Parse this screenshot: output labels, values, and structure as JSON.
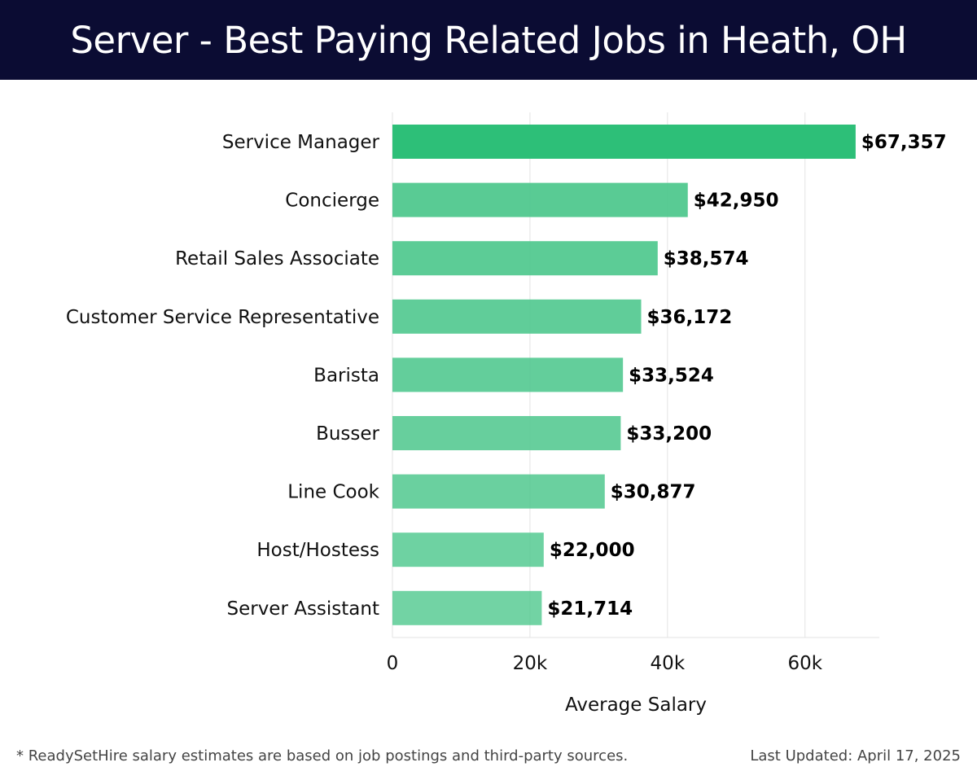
{
  "title": "Server - Best Paying Related Jobs in Heath, OH",
  "footnote": "* ReadySetHire salary estimates are based on job postings and third-party sources.",
  "last_updated": "Last Updated: April 17, 2025",
  "colors": {
    "header_bg": "#0b0c33",
    "bar_top": "#2dbf78",
    "bar": "#4cc78c",
    "grid": "#e3e3e3"
  },
  "chart_data": {
    "type": "bar",
    "orientation": "horizontal",
    "categories": [
      "Service Manager",
      "Concierge",
      "Retail Sales Associate",
      "Customer Service Representative",
      "Barista",
      "Busser",
      "Line Cook",
      "Host/Hostess",
      "Server Assistant"
    ],
    "values": [
      67357,
      42950,
      38574,
      36172,
      33524,
      33200,
      30877,
      22000,
      21714
    ],
    "value_labels": [
      "$67,357",
      "$42,950",
      "$38,574",
      "$36,172",
      "$33,524",
      "$33,200",
      "$30,877",
      "$22,000",
      "$21,714"
    ],
    "xlabel": "Average Salary",
    "ylabel": "",
    "xlim": [
      0,
      70800
    ],
    "xticks": [
      0,
      20000,
      40000,
      60000
    ],
    "xtick_labels": [
      "0",
      "20k",
      "40k",
      "60k"
    ],
    "grid": "vertical"
  }
}
